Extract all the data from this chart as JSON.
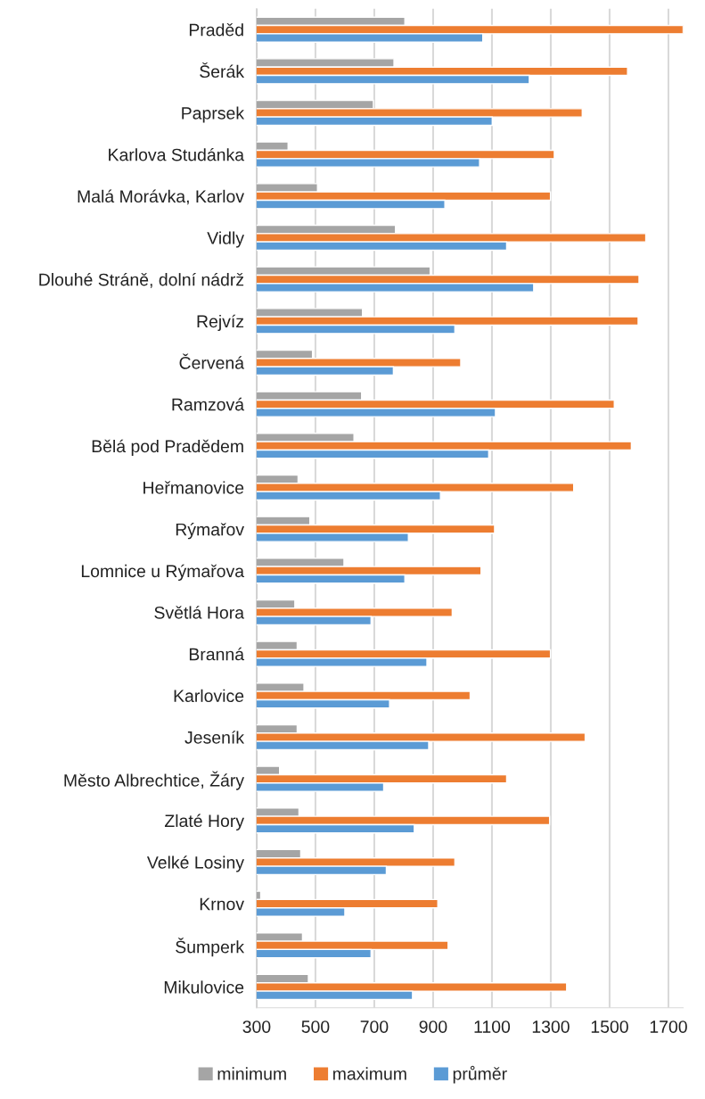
{
  "chart_data": {
    "type": "bar",
    "orientation": "horizontal",
    "categories": [
      "Praděd",
      "Šerák",
      "Paprsek",
      "Karlova Studánka",
      "Malá Morávka, Karlov",
      "Vidly",
      "Dlouhé Stráně, dolní nádrž",
      "Rejvíz",
      "Červená",
      "Ramzová",
      "Bělá pod Pradědem",
      "Heřmanovice",
      "Rýmařov",
      "Lomnice u Rýmařova",
      "Světlá Hora",
      "Branná",
      "Karlovice",
      "Jeseník",
      "Město Albrechtice, Žáry",
      "Zlaté Hory",
      "Velké Losiny",
      "Krnov",
      "Šumperk",
      "Mikulovice"
    ],
    "series": [
      {
        "name": "minimum",
        "color": "#a5a5a5",
        "values": [
          804,
          767,
          697,
          407,
          507,
          772,
          890,
          660,
          490,
          657,
          631,
          441,
          481,
          597,
          430,
          438,
          461,
          438,
          378,
          444,
          450,
          314,
          456,
          476
        ]
      },
      {
        "name": "maximum",
        "color": "#ed7d31",
        "values": [
          1750,
          1561,
          1407,
          1312,
          1299,
          1623,
          1600,
          1597,
          994,
          1516,
          1574,
          1378,
          1109,
          1063,
          965,
          1299,
          1026,
          1417,
          1150,
          1296,
          974,
          916,
          951,
          1354
        ]
      },
      {
        "name": "průměr",
        "color": "#5b9bd5",
        "values": [
          1069,
          1227,
          1101,
          1058,
          940,
          1150,
          1242,
          974,
          765,
          1112,
          1089,
          925,
          816,
          804,
          689,
          879,
          752,
          885,
          732,
          836,
          741,
          600,
          689,
          830
        ]
      }
    ],
    "xlim": [
      300,
      1750
    ],
    "xticks": [
      300,
      500,
      700,
      900,
      1100,
      1300,
      1500,
      1700
    ],
    "grid": "x",
    "legend": "bottom"
  }
}
